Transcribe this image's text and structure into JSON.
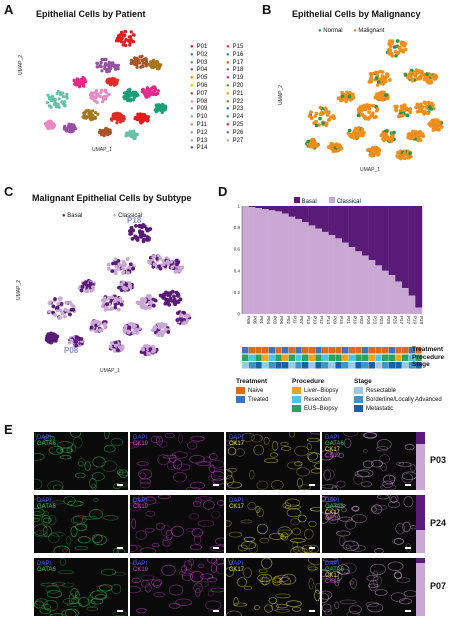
{
  "panels": {
    "a": {
      "letter": "A",
      "title": "Epithelial Cells by Patient",
      "xaxis": "UMAP_1",
      "yaxis": "UMAP_2",
      "legend": [
        {
          "label": "P01",
          "color": "#e41a1c"
        },
        {
          "label": "P02",
          "color": "#377eb8"
        },
        {
          "label": "P03",
          "color": "#4daf4a"
        },
        {
          "label": "P04",
          "color": "#984ea3"
        },
        {
          "label": "P05",
          "color": "#ff7f00"
        },
        {
          "label": "P06",
          "color": "#e6c400"
        },
        {
          "label": "P07",
          "color": "#a65628"
        },
        {
          "label": "P08",
          "color": "#f781bf"
        },
        {
          "label": "P09",
          "color": "#999999"
        },
        {
          "label": "P10",
          "color": "#66c2a5"
        },
        {
          "label": "P11",
          "color": "#fc8d62"
        },
        {
          "label": "P12",
          "color": "#8da0cb"
        },
        {
          "label": "P13",
          "color": "#e78ac3"
        },
        {
          "label": "P14",
          "color": "#4f5fd9"
        },
        {
          "label": "P15",
          "color": "#ff3333"
        },
        {
          "label": "P16",
          "color": "#1b9e77"
        },
        {
          "label": "P17",
          "color": "#d95f02"
        },
        {
          "label": "P18",
          "color": "#7570b3"
        },
        {
          "label": "P19",
          "color": "#e7298a"
        },
        {
          "label": "P20",
          "color": "#66a61e"
        },
        {
          "label": "P21",
          "color": "#e6ab02"
        },
        {
          "label": "P22",
          "color": "#a6761d"
        },
        {
          "label": "P23",
          "color": "#2c7fb8"
        },
        {
          "label": "P24",
          "color": "#31a354"
        },
        {
          "label": "P25",
          "color": "#de2d26"
        },
        {
          "label": "P26",
          "color": "#756bb1"
        },
        {
          "label": "P27",
          "color": "#f4a582"
        }
      ]
    },
    "b": {
      "letter": "B",
      "title": "Epithelial Cells by Malignancy",
      "xaxis": "UMAP_1",
      "yaxis": "UMAP_2",
      "legend": [
        {
          "label": "Normal",
          "color": "#1a9850"
        },
        {
          "label": "Malignant",
          "color": "#f28e1c"
        }
      ]
    },
    "c": {
      "letter": "C",
      "title": "Malignant Epithelial Cells by Subtype",
      "xaxis": "UMAP_1",
      "yaxis": "UMAP_2",
      "legend": [
        {
          "label": "Basal",
          "color": "#5a1a78"
        },
        {
          "label": "Classical",
          "color": "#c9a8d4"
        }
      ],
      "annotations": [
        "P18",
        "P08"
      ]
    },
    "d": {
      "letter": "D",
      "legend": [
        {
          "label": "Basal",
          "color": "#5a1a78"
        },
        {
          "label": "Classical",
          "color": "#c9a8d4"
        }
      ],
      "track_labels": [
        "Treatment",
        "Procedure",
        "Stage"
      ],
      "tracks": {
        "treatment": [
          "#3a75c4",
          "#e06a1a",
          "#e06a1a",
          "#e06a1a",
          "#3a75c4",
          "#e06a1a",
          "#3a75c4",
          "#e06a1a",
          "#3a75c4",
          "#e06a1a",
          "#e06a1a",
          "#3a75c4",
          "#e06a1a",
          "#e06a1a",
          "#e06a1a",
          "#3a75c4",
          "#e06a1a",
          "#e06a1a",
          "#3a75c4",
          "#e06a1a",
          "#e06a1a",
          "#e06a1a",
          "#3a75c4",
          "#e06a1a",
          "#e06a1a",
          "#3a75c4",
          "#e06a1a"
        ],
        "procedure": [
          "#2ca25f",
          "#4fc3e8",
          "#2ca25f",
          "#f2a21c",
          "#4fc3e8",
          "#2ca25f",
          "#f2a21c",
          "#2ca25f",
          "#4fc3e8",
          "#2ca25f",
          "#f2a21c",
          "#2ca25f",
          "#4fc3e8",
          "#2ca25f",
          "#2ca25f",
          "#f2a21c",
          "#4fc3e8",
          "#2ca25f",
          "#2ca25f",
          "#f2a21c",
          "#4fc3e8",
          "#2ca25f",
          "#2ca25f",
          "#f2a21c",
          "#2ca25f",
          "#4fc3e8",
          "#2ca25f"
        ],
        "stage": [
          "#9ecae1",
          "#4292c6",
          "#1c5fa8",
          "#9ecae1",
          "#4292c6",
          "#1c5fa8",
          "#1c5fa8",
          "#9ecae1",
          "#4292c6",
          "#1c5fa8",
          "#9ecae1",
          "#1c5fa8",
          "#4292c6",
          "#9ecae1",
          "#1c5fa8",
          "#4292c6",
          "#9ecae1",
          "#1c5fa8",
          "#4292c6",
          "#1c5fa8",
          "#9ecae1",
          "#4292c6",
          "#1c5fa8",
          "#1c5fa8",
          "#9ecae1",
          "#4292c6",
          "#1c5fa8"
        ]
      },
      "key_groups": [
        {
          "title": "Treatment",
          "items": [
            {
              "label": "Naive",
              "color": "#e06a1a"
            },
            {
              "label": "Treated",
              "color": "#3a75c4"
            }
          ]
        },
        {
          "title": "Procedure",
          "items": [
            {
              "label": "Liver–Biopsy",
              "color": "#f2a21c"
            },
            {
              "label": "Resection",
              "color": "#4fc3e8"
            },
            {
              "label": "EUS–Biopsy",
              "color": "#2ca25f"
            }
          ]
        },
        {
          "title": "Stage",
          "items": [
            {
              "label": "Resectable",
              "color": "#9ecae1"
            },
            {
              "label": "Borderline/Locally Advanced",
              "color": "#4292c6"
            },
            {
              "label": "Metastatic",
              "color": "#1c5fa8"
            }
          ]
        }
      ]
    },
    "e": {
      "letter": "E",
      "rows": [
        {
          "patient": "P03",
          "labels": [
            [
              "DAPI",
              "GATA6"
            ],
            [
              "DAPI",
              "CK19"
            ],
            [
              "DAPI",
              "CK17"
            ],
            [
              "DAPI",
              "GATA6",
              "CK17",
              "CK19"
            ]
          ],
          "basal_frac": 0.2
        },
        {
          "patient": "P24",
          "labels": [
            [
              "DAPI",
              "GATA6"
            ],
            [
              "DAPI",
              "CK19"
            ],
            [
              "DAPI",
              "CK17"
            ],
            [
              "DAPI",
              "GATA6",
              "CK17",
              "CK19"
            ]
          ],
          "basal_frac": 0.6
        },
        {
          "patient": "P07",
          "labels": [
            [
              "DAPI",
              "GATA6"
            ],
            [
              "DAPI",
              "CK19"
            ],
            [
              "DAPI",
              "CK17"
            ],
            [
              "DAPI",
              "GATA6",
              "CK17",
              "CK19"
            ]
          ],
          "basal_frac": 0.08
        }
      ],
      "marker_colors": {
        "DAPI": "#3b5bff",
        "GATA6": "#2fd24a",
        "CK19": "#d23ad8",
        "CK17": "#e8e23a"
      }
    }
  },
  "chart_data": {
    "type": "bar",
    "stacked": true,
    "categories": [
      "P08",
      "P05",
      "P01",
      "P04",
      "P03",
      "P06",
      "P02",
      "P11",
      "P07",
      "P13",
      "P10",
      "P12",
      "P14",
      "P09",
      "P15",
      "P21",
      "P16",
      "P22",
      "P20",
      "P23",
      "P24",
      "P25",
      "P26",
      "P17",
      "P27",
      "P19",
      "P18"
    ],
    "series": [
      {
        "name": "Classical",
        "values": [
          1.0,
          0.99,
          0.98,
          0.97,
          0.96,
          0.95,
          0.93,
          0.9,
          0.88,
          0.85,
          0.82,
          0.79,
          0.76,
          0.73,
          0.7,
          0.66,
          0.62,
          0.58,
          0.54,
          0.5,
          0.45,
          0.4,
          0.36,
          0.3,
          0.24,
          0.17,
          0.06
        ]
      },
      {
        "name": "Basal",
        "values": [
          0.0,
          0.01,
          0.02,
          0.03,
          0.04,
          0.05,
          0.07,
          0.1,
          0.12,
          0.15,
          0.18,
          0.21,
          0.24,
          0.27,
          0.3,
          0.34,
          0.38,
          0.42,
          0.46,
          0.5,
          0.55,
          0.6,
          0.64,
          0.7,
          0.76,
          0.83,
          0.94
        ]
      }
    ],
    "yticks": [
      "0",
      "0.2",
      "0.4",
      "0.6",
      "0.8",
      "1"
    ],
    "ylim": [
      0,
      1
    ],
    "legend_position": "top"
  }
}
